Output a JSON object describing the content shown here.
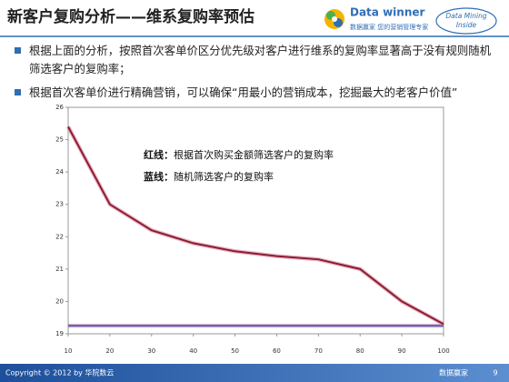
{
  "header": {
    "title": "新客户复购分析——维系复购率预估",
    "logo_name": "Data winner",
    "logo_slogan": "数据赢家 您的营销管理专家",
    "badge": [
      "Data Mining",
      "Inside"
    ]
  },
  "bullets": [
    "根据上面的分析，按照首次客单价区分优先级对客户进行维系的复购率显著高于没有规则随机筛选客户的复购率；",
    "根据首次客单价进行精确营销，可以确保“用最小的营销成本，挖掘最大的老客户价值”"
  ],
  "chart_data": {
    "type": "line",
    "x": [
      10,
      20,
      30,
      40,
      50,
      60,
      70,
      80,
      90,
      100
    ],
    "series": [
      {
        "key": "红线：",
        "name": "根据首次购买金额筛选客户的复购率",
        "color": "#8e1b30",
        "values": [
          25.4,
          23.0,
          22.2,
          21.8,
          21.55,
          21.4,
          21.3,
          21.0,
          20.0,
          19.3
        ]
      },
      {
        "key": "蓝线：",
        "name": "随机筛选客户的复购率",
        "color": "#4b63c8",
        "values": [
          19.25,
          19.25,
          19.25,
          19.25,
          19.25,
          19.25,
          19.25,
          19.25,
          19.25,
          19.25
        ]
      }
    ],
    "xlim": [
      10,
      100
    ],
    "xticks": [
      10,
      20,
      30,
      40,
      50,
      60,
      70,
      80,
      90,
      100
    ],
    "ylim": [
      19,
      26
    ],
    "yticks": [
      19,
      20,
      21,
      22,
      23,
      24,
      25,
      26
    ]
  },
  "footer": {
    "copyright": "Copyright © 2012 by 华院数云",
    "brand": "数据赢家",
    "page": "9"
  }
}
